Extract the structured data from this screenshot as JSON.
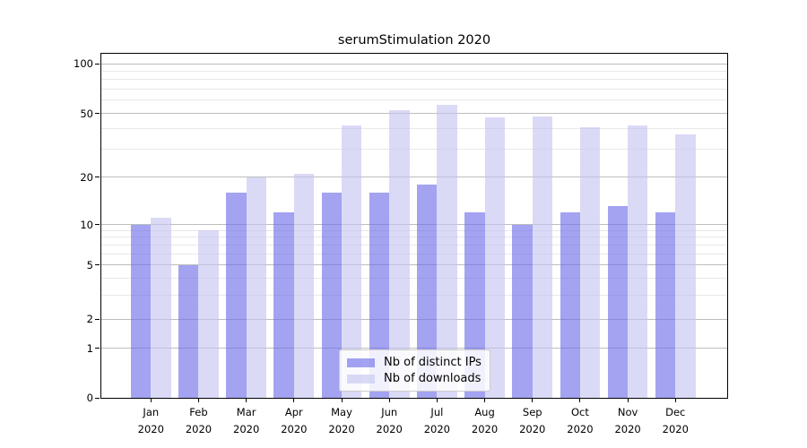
{
  "chart_data": {
    "type": "bar",
    "title": "serumStimulation 2020",
    "categories": [
      "Jan",
      "Feb",
      "Mar",
      "Apr",
      "May",
      "Jun",
      "Jul",
      "Aug",
      "Sep",
      "Oct",
      "Nov",
      "Dec"
    ],
    "category_year": "2020",
    "series": [
      {
        "name": "Nb of distinct IPs",
        "color": "#6a6ae8",
        "alpha": 0.62,
        "values": [
          10,
          5,
          16,
          12,
          16,
          16,
          18,
          12,
          10,
          12,
          13,
          12
        ]
      },
      {
        "name": "Nb of downloads",
        "color": "#c3c3f0",
        "alpha": 0.62,
        "values": [
          11,
          9,
          20,
          21,
          42,
          52,
          56,
          47,
          48,
          41,
          42,
          37
        ]
      }
    ],
    "yscale": "symlog",
    "ylim": [
      0,
      116
    ],
    "yticks": [
      0,
      1,
      2,
      5,
      10,
      20,
      50,
      100
    ],
    "yticks_minor": [
      3,
      4,
      6,
      7,
      8,
      9,
      30,
      40,
      60,
      70,
      80,
      90
    ],
    "grid": true,
    "legend_position": "lower center inside",
    "colors": {
      "major_grid": "#bdbdbd",
      "minor_grid": "#e8e8e8",
      "spine": "#000000",
      "background": "#ffffff"
    }
  }
}
